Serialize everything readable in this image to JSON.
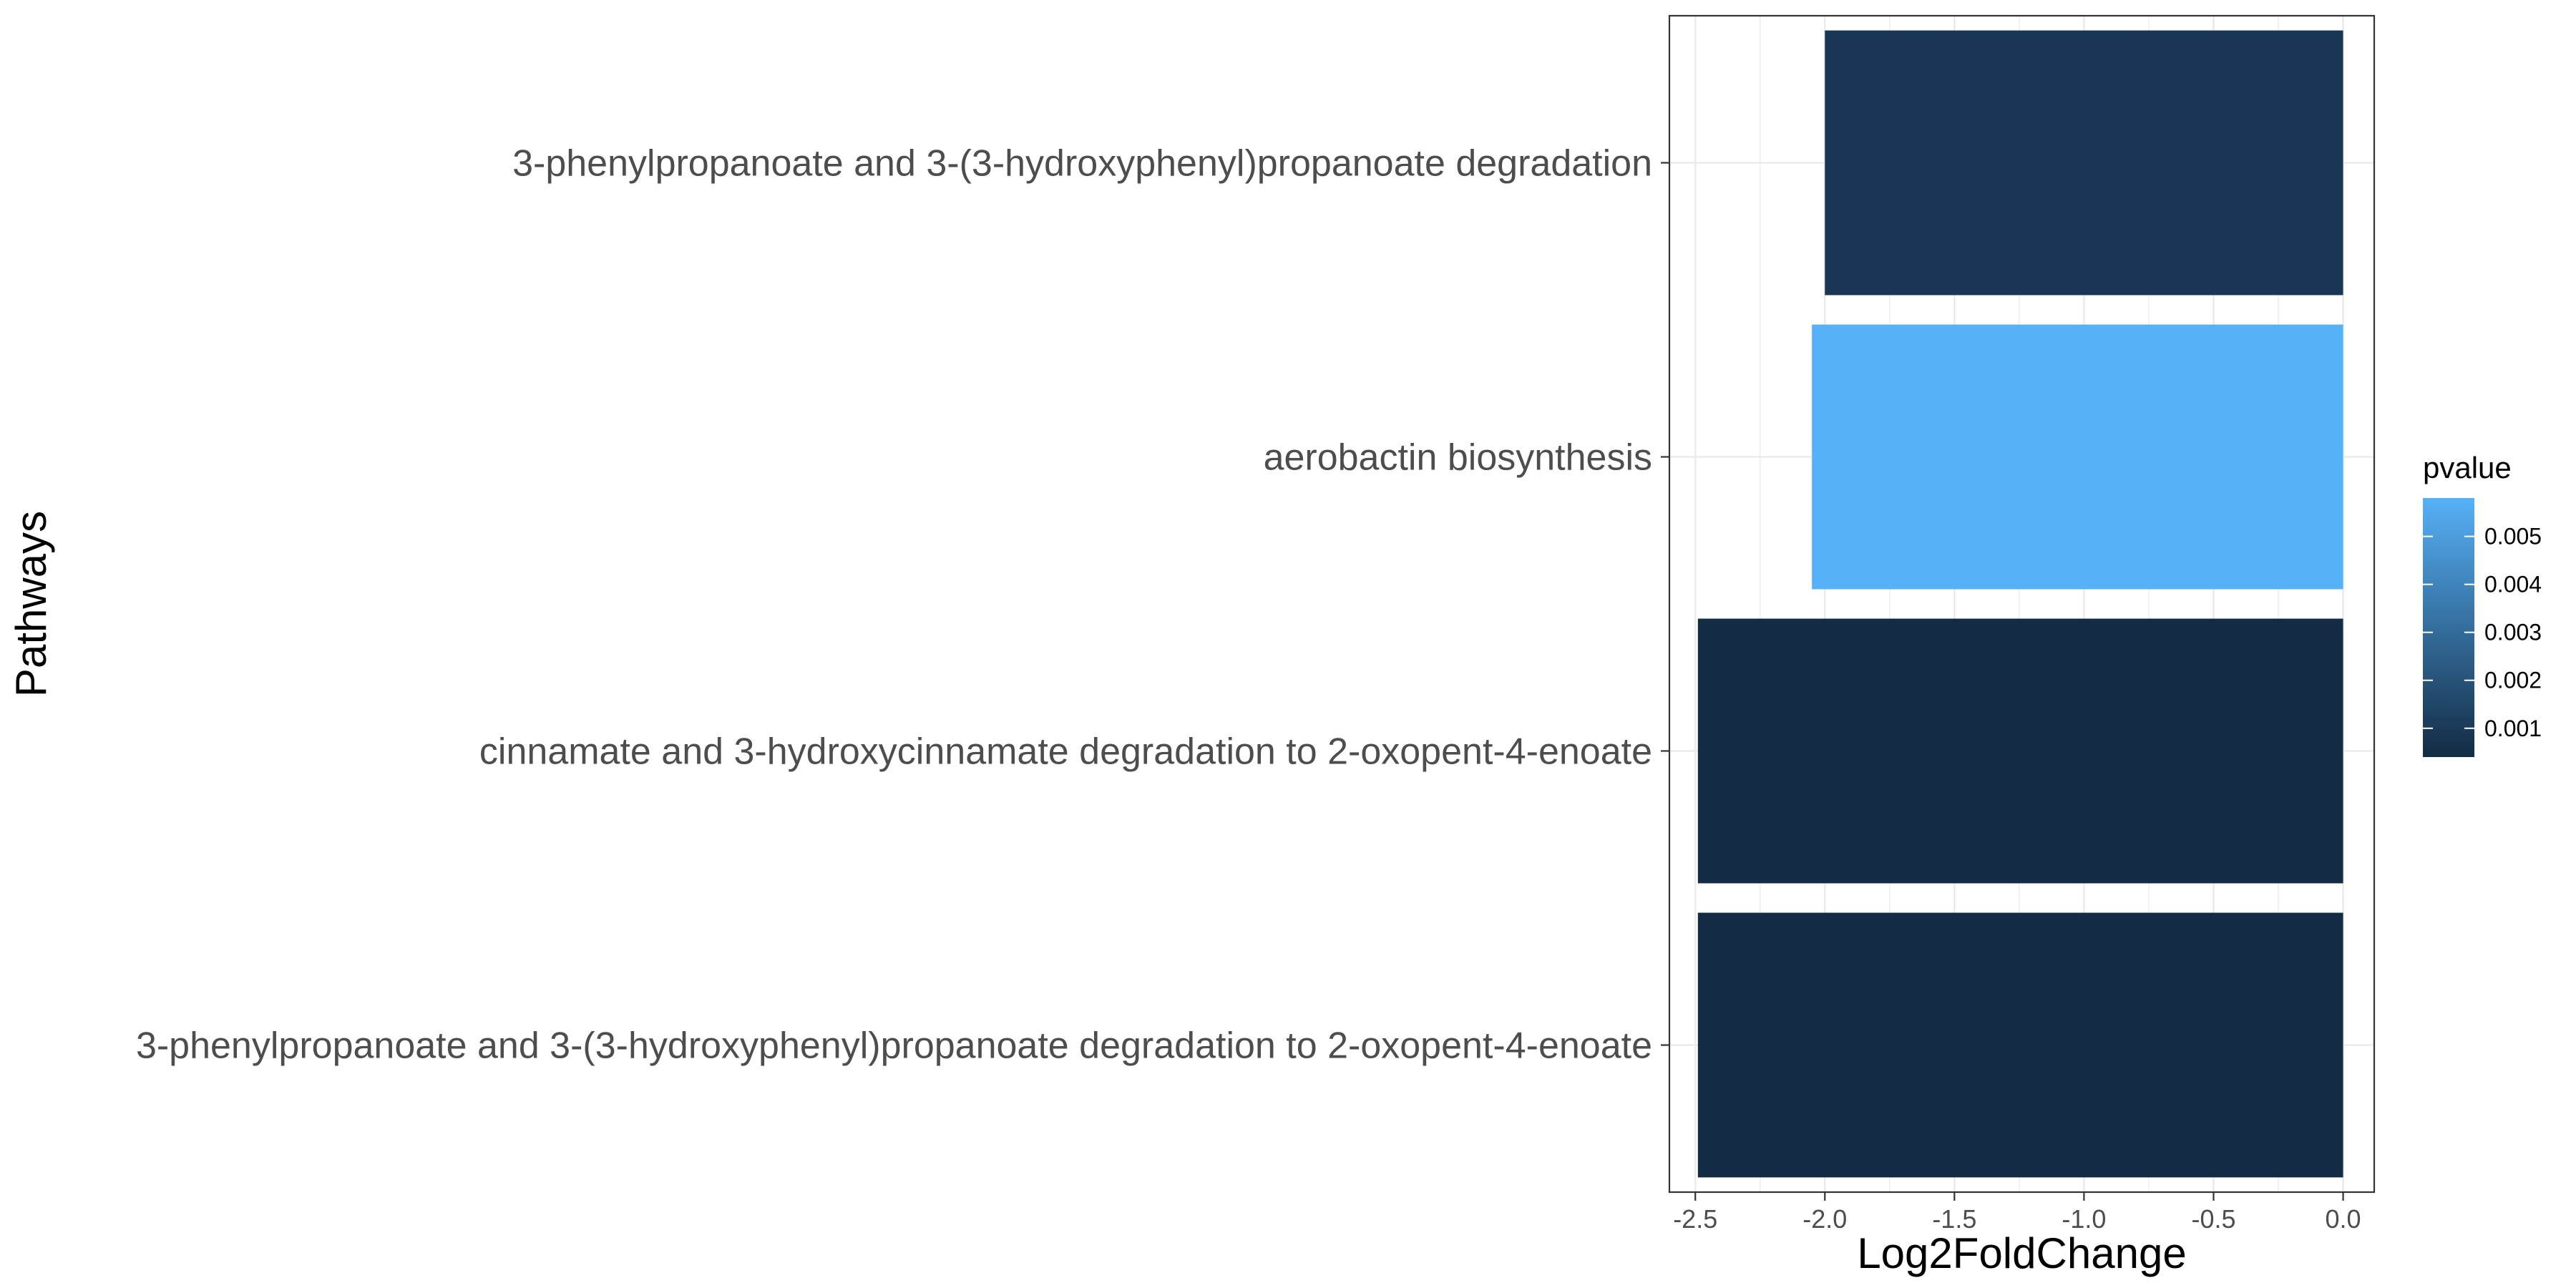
{
  "chart_data": {
    "type": "bar",
    "orientation": "horizontal",
    "categories": [
      "3-phenylpropanoate and 3-(3-hydroxyphenyl)propanoate degradation",
      "aerobactin biosynthesis",
      "cinnamate and 3-hydroxycinnamate degradation to 2-oxopent-4-enoate",
      "3-phenylpropanoate and 3-(3-hydroxyphenyl)propanoate degradation to 2-oxopent-4-enoate"
    ],
    "values": [
      -2.0,
      -2.05,
      -2.49,
      -2.49
    ],
    "pvalues": [
      0.0009,
      0.0058,
      0.0004,
      0.0004
    ],
    "xlabel": "Log2FoldChange",
    "ylabel": "Pathways",
    "xlim": [
      -2.6,
      0.12
    ],
    "xticks": [
      -2.5,
      -2.0,
      -1.5,
      -1.0,
      -0.5,
      0.0
    ],
    "xtick_labels": [
      "-2.5",
      "-2.0",
      "-1.5",
      "-1.0",
      "-0.5",
      "0.0"
    ],
    "grid": true,
    "legend": {
      "title": "pvalue",
      "position": "right",
      "range": [
        0.0004,
        0.0058
      ],
      "ticks": [
        0.001,
        0.002,
        0.003,
        0.004,
        0.005
      ],
      "tick_labels": [
        "0.001",
        "0.002",
        "0.003",
        "0.004",
        "0.005"
      ],
      "color_low": "#132B43",
      "color_high": "#56B1F7"
    }
  }
}
